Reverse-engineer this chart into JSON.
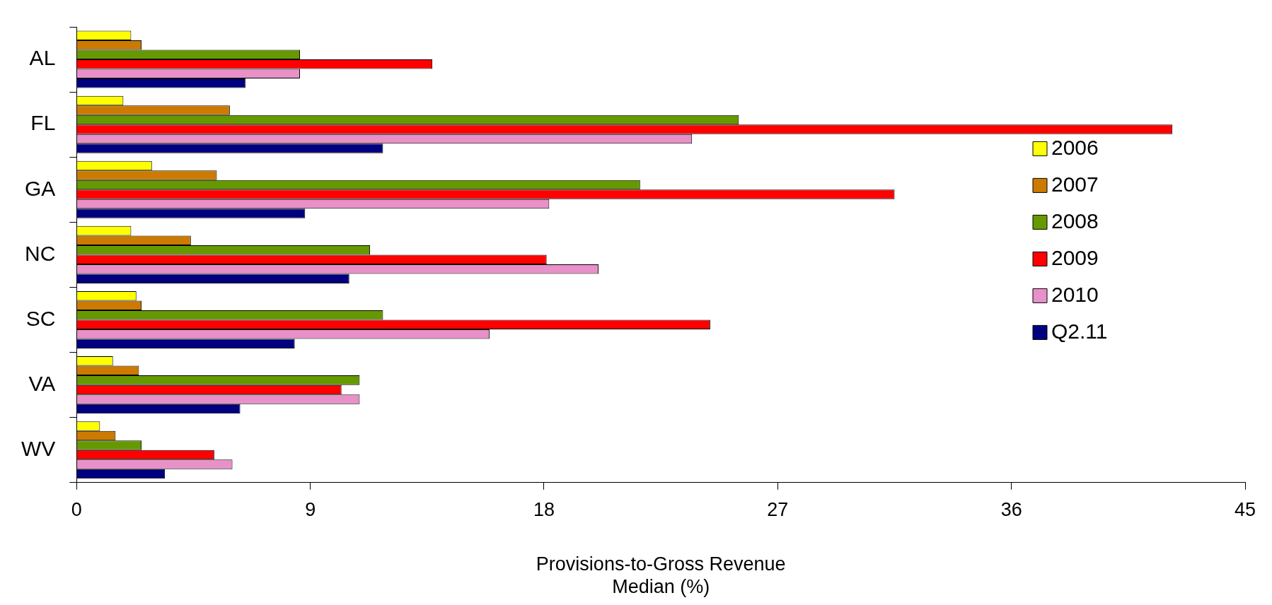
{
  "chart_data": {
    "type": "bar",
    "orientation": "horizontal",
    "xlabel": "Provisions-to-Gross Revenue\nMedian (%)",
    "categories": [
      "AL",
      "FL",
      "GA",
      "NC",
      "SC",
      "VA",
      "WV"
    ],
    "series": [
      {
        "name": "2006",
        "color": "#ffff00",
        "values": [
          2.1,
          1.8,
          2.9,
          2.1,
          2.3,
          1.4,
          0.9
        ]
      },
      {
        "name": "2007",
        "color": "#cc7a00",
        "values": [
          2.5,
          5.9,
          5.4,
          4.4,
          2.5,
          2.4,
          1.5
        ]
      },
      {
        "name": "2008",
        "color": "#669900",
        "values": [
          8.6,
          25.5,
          21.7,
          11.3,
          11.8,
          10.9,
          2.5
        ]
      },
      {
        "name": "2009",
        "color": "#ff0000",
        "values": [
          13.7,
          42.2,
          31.5,
          18.1,
          24.4,
          10.2,
          5.3
        ]
      },
      {
        "name": "2010",
        "color": "#e890c8",
        "values": [
          8.6,
          23.7,
          18.2,
          20.1,
          15.9,
          10.9,
          6.0
        ]
      },
      {
        "name": "Q2.11",
        "color": "#000080",
        "values": [
          6.5,
          11.8,
          8.8,
          10.5,
          8.4,
          6.3,
          3.4
        ]
      }
    ],
    "xlim": [
      0,
      45
    ],
    "xticks": [
      0,
      9,
      18,
      27,
      36,
      45
    ],
    "grid": false,
    "legend": "right"
  }
}
